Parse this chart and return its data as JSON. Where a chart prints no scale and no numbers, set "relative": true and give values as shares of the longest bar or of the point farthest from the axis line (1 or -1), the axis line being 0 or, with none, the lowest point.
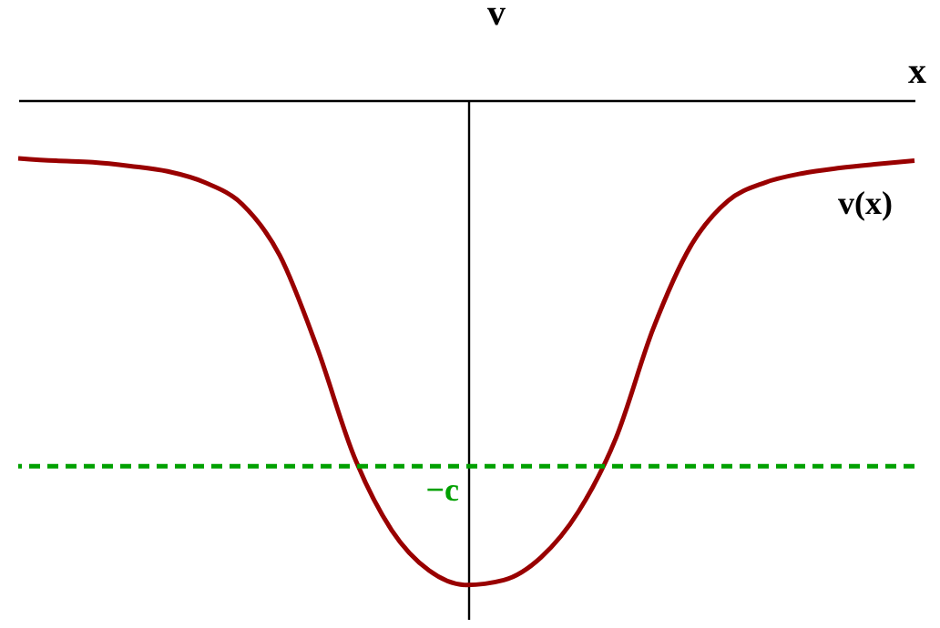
{
  "chart_data": {
    "type": "line",
    "relative": true,
    "xlabel": "x",
    "ylabel": "v",
    "categories": [
      null,
      null,
      null,
      null,
      null,
      null,
      null,
      null,
      null,
      null,
      null,
      null,
      null,
      null,
      null,
      null,
      null,
      null,
      null,
      null,
      null,
      null,
      null,
      null,
      null
    ],
    "series": [
      {
        "color": "#990000",
        "values": [
          -0.12,
          -0.125,
          -0.128,
          -0.136,
          -0.147,
          -0.17,
          -0.215,
          -0.32,
          -0.51,
          -0.736,
          -0.887,
          -0.97,
          -1,
          -0.99,
          -0.943,
          -0.849,
          -0.698,
          -0.472,
          -0.302,
          -0.208,
          -0.17,
          -0.151,
          -0.14,
          -0.132,
          -0.125
        ]
      }
    ],
    "ref_lines": [
      {
        "axis": "y",
        "value": -0.755,
        "label": "−c",
        "color": "#00a000",
        "line_style": "dashed"
      }
    ],
    "annotations": [
      "v(x)"
    ],
    "grid": false,
    "line_style": "solid"
  }
}
